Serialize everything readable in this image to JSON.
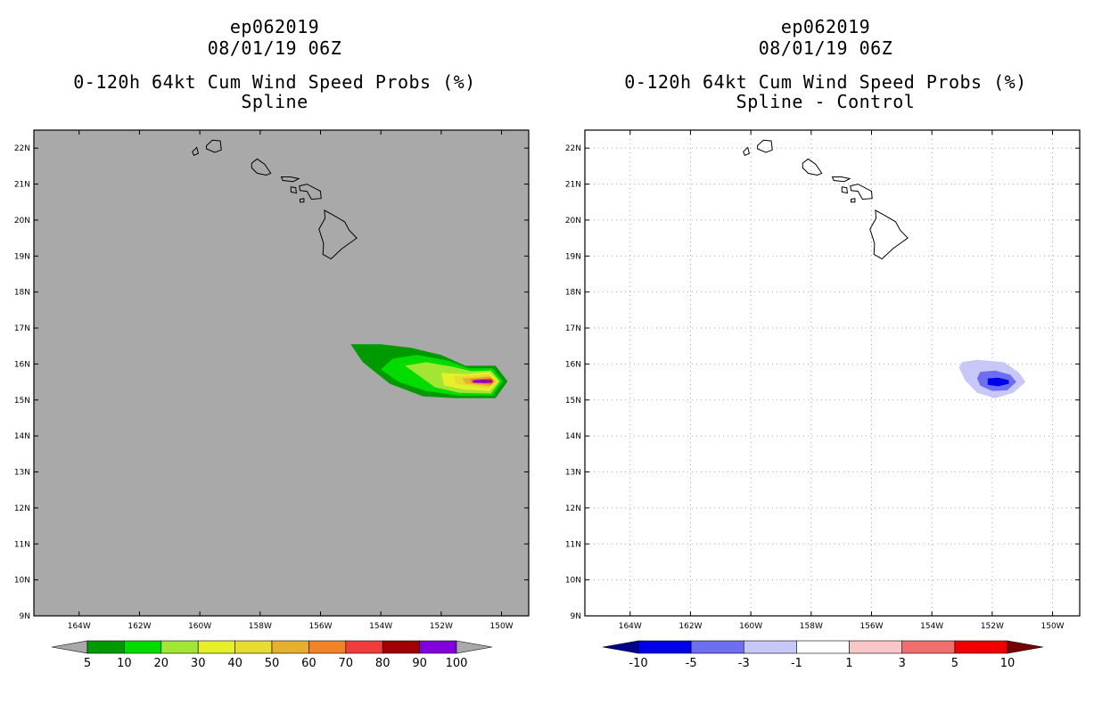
{
  "chart_data": [
    {
      "type": "heatmap",
      "storm_id": "ep062019",
      "datetime": "08/01/19 06Z",
      "title": "0-120h 64kt Cum Wind Speed Probs (%)",
      "subtitle": "Spline",
      "x_ticks": [
        "164W",
        "162W",
        "160W",
        "158W",
        "156W",
        "154W",
        "152W",
        "150W"
      ],
      "x_values": [
        -164,
        -162,
        -160,
        -158,
        -156,
        -154,
        -152,
        -150
      ],
      "y_ticks": [
        "9N",
        "10N",
        "11N",
        "12N",
        "13N",
        "14N",
        "15N",
        "16N",
        "17N",
        "18N",
        "19N",
        "20N",
        "21N",
        "22N"
      ],
      "y_values": [
        9,
        10,
        11,
        12,
        13,
        14,
        15,
        16,
        17,
        18,
        19,
        20,
        21,
        22
      ],
      "xlim": [
        -165.5,
        -149.1
      ],
      "ylim": [
        9,
        22.5
      ],
      "grid": false,
      "background_color": "#a9a9a9",
      "colorbar": {
        "labels": [
          "5",
          "10",
          "20",
          "30",
          "40",
          "50",
          "60",
          "70",
          "80",
          "90",
          "100"
        ],
        "colors": [
          "#009a00",
          "#00dc00",
          "#a0e632",
          "#e6f028",
          "#e6dc32",
          "#e6af2d",
          "#f08228",
          "#f03c3c",
          "#a00000",
          "#8200dc"
        ],
        "under_color": "#a9a9a9",
        "over_color": "#a9a9a9"
      },
      "contour_levels_center": "151W 15.5N"
    },
    {
      "type": "heatmap",
      "storm_id": "ep062019",
      "datetime": "08/01/19 06Z",
      "title": "0-120h 64kt Cum Wind Speed Probs (%)",
      "subtitle": "Spline - Control",
      "x_ticks": [
        "164W",
        "162W",
        "160W",
        "158W",
        "156W",
        "154W",
        "152W",
        "150W"
      ],
      "x_values": [
        -164,
        -162,
        -160,
        -158,
        -156,
        -154,
        -152,
        -150
      ],
      "y_ticks": [
        "9N",
        "10N",
        "11N",
        "12N",
        "13N",
        "14N",
        "15N",
        "16N",
        "17N",
        "18N",
        "19N",
        "20N",
        "21N",
        "22N"
      ],
      "y_values": [
        9,
        10,
        11,
        12,
        13,
        14,
        15,
        16,
        17,
        18,
        19,
        20,
        21,
        22
      ],
      "xlim": [
        -165.5,
        -149.1
      ],
      "ylim": [
        9,
        22.5
      ],
      "grid": true,
      "background_color": "#ffffff",
      "colorbar": {
        "labels": [
          "-10",
          "-5",
          "-3",
          "-1",
          "1",
          "3",
          "5",
          "10"
        ],
        "colors": [
          "#0000e6",
          "#6e6ef0",
          "#c8c8f8",
          "#ffffff",
          "#f8c8c8",
          "#f06e6e",
          "#f00000"
        ],
        "under_color": "#00008c",
        "over_color": "#780000"
      },
      "contour_levels_center": "152W 15.5N"
    }
  ],
  "icons": {
    "island-outline": "hawaii-islands-icon"
  }
}
